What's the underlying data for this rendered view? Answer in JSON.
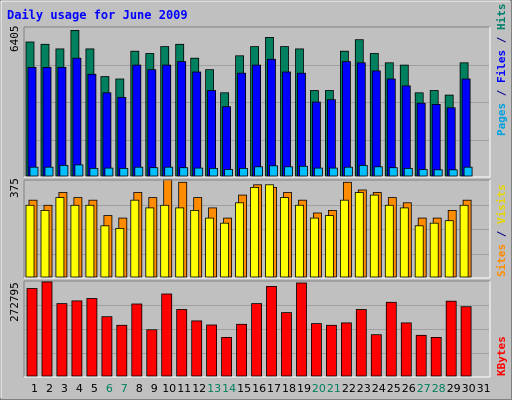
{
  "title": "Daily usage for June 2009",
  "axis_max": {
    "top": "6405",
    "middle": "375",
    "bottom": "272795"
  },
  "right_labels": {
    "top": [
      {
        "text": "Pages",
        "color": "#00a0e0"
      },
      {
        "text": " / ",
        "color": "#00008b"
      },
      {
        "text": "Files",
        "color": "#0000ff"
      },
      {
        "text": " / ",
        "color": "#00008b"
      },
      {
        "text": "Hits",
        "color": "#00806a"
      }
    ],
    "middle": [
      {
        "text": "Sites",
        "color": "#ff8c00"
      },
      {
        "text": " / ",
        "color": "#00008b"
      },
      {
        "text": "Visits",
        "color": "#e8d800"
      }
    ],
    "bottom": [
      {
        "text": "KBytes",
        "color": "#ff0000"
      }
    ]
  },
  "colors": {
    "background": "#c0c0c0",
    "title": "#0000ff",
    "hits": "#00805f",
    "files": "#0000ff",
    "pages": "#00c0ff",
    "visits": "#ffff00",
    "sites": "#ff8c00",
    "kbytes": "#ff0000",
    "weekday": "#000000",
    "weekend": "#00805f"
  },
  "chart_data": [
    {
      "type": "bar",
      "categories": [
        "1",
        "2",
        "3",
        "4",
        "5",
        "6",
        "7",
        "8",
        "9",
        "10",
        "11",
        "12",
        "13",
        "14",
        "15",
        "16",
        "17",
        "18",
        "19",
        "20",
        "21",
        "22",
        "23",
        "24",
        "25",
        "26",
        "27",
        "28",
        "29",
        "30",
        "31"
      ],
      "weekend_days": [
        "6",
        "7",
        "13",
        "14",
        "20",
        "21",
        "27",
        "28"
      ],
      "ylim": [
        0,
        6405
      ],
      "series": [
        {
          "name": "Hits",
          "values": [
            5800,
            5700,
            5500,
            6300,
            5500,
            4300,
            4200,
            5400,
            5300,
            5600,
            5700,
            5100,
            4600,
            3600,
            5200,
            5600,
            6000,
            5600,
            5500,
            3700,
            3700,
            5400,
            5900,
            5300,
            4900,
            4800,
            3600,
            3700,
            3500,
            4900,
            0
          ]
        },
        {
          "name": "Files",
          "values": [
            4700,
            4700,
            4700,
            5100,
            4400,
            3600,
            3400,
            4800,
            4600,
            4800,
            4950,
            4500,
            3700,
            3000,
            4450,
            4800,
            5050,
            4500,
            4450,
            3200,
            3300,
            4950,
            4900,
            4550,
            4200,
            3900,
            3150,
            3100,
            2950,
            4200,
            0
          ]
        },
        {
          "name": "Pages",
          "values": [
            380,
            380,
            460,
            480,
            330,
            340,
            330,
            380,
            360,
            380,
            360,
            340,
            330,
            280,
            330,
            400,
            440,
            400,
            420,
            340,
            340,
            380,
            460,
            400,
            360,
            330,
            280,
            270,
            270,
            380,
            0
          ]
        }
      ]
    },
    {
      "type": "bar",
      "categories": [
        "1",
        "2",
        "3",
        "4",
        "5",
        "6",
        "7",
        "8",
        "9",
        "10",
        "11",
        "12",
        "13",
        "14",
        "15",
        "16",
        "17",
        "18",
        "19",
        "20",
        "21",
        "22",
        "23",
        "24",
        "25",
        "26",
        "27",
        "28",
        "29",
        "30",
        "31"
      ],
      "ylim": [
        0,
        375
      ],
      "series": [
        {
          "name": "Visits",
          "values": [
            280,
            260,
            310,
            280,
            280,
            200,
            190,
            300,
            270,
            280,
            270,
            260,
            230,
            210,
            290,
            350,
            360,
            310,
            280,
            230,
            240,
            300,
            330,
            320,
            280,
            270,
            200,
            210,
            220,
            280,
            0
          ]
        },
        {
          "name": "Sites",
          "values": [
            300,
            280,
            330,
            310,
            300,
            240,
            230,
            330,
            310,
            380,
            370,
            310,
            270,
            230,
            320,
            360,
            350,
            330,
            300,
            250,
            260,
            370,
            340,
            330,
            310,
            290,
            230,
            230,
            260,
            300,
            0
          ]
        }
      ]
    },
    {
      "type": "bar",
      "categories": [
        "1",
        "2",
        "3",
        "4",
        "5",
        "6",
        "7",
        "8",
        "9",
        "10",
        "11",
        "12",
        "13",
        "14",
        "15",
        "16",
        "17",
        "18",
        "19",
        "20",
        "21",
        "22",
        "23",
        "24",
        "25",
        "26",
        "27",
        "28",
        "29",
        "30",
        "31"
      ],
      "ylim": [
        0,
        272795
      ],
      "series": [
        {
          "name": "KBytes",
          "values": [
            254000,
            272795,
            210000,
            218000,
            225000,
            172000,
            147000,
            209000,
            134000,
            238000,
            193000,
            160000,
            148000,
            112000,
            150000,
            210000,
            260000,
            184000,
            270000,
            152000,
            147000,
            154000,
            193000,
            120000,
            214000,
            154000,
            118000,
            112000,
            217000,
            201000,
            0
          ]
        }
      ]
    }
  ]
}
